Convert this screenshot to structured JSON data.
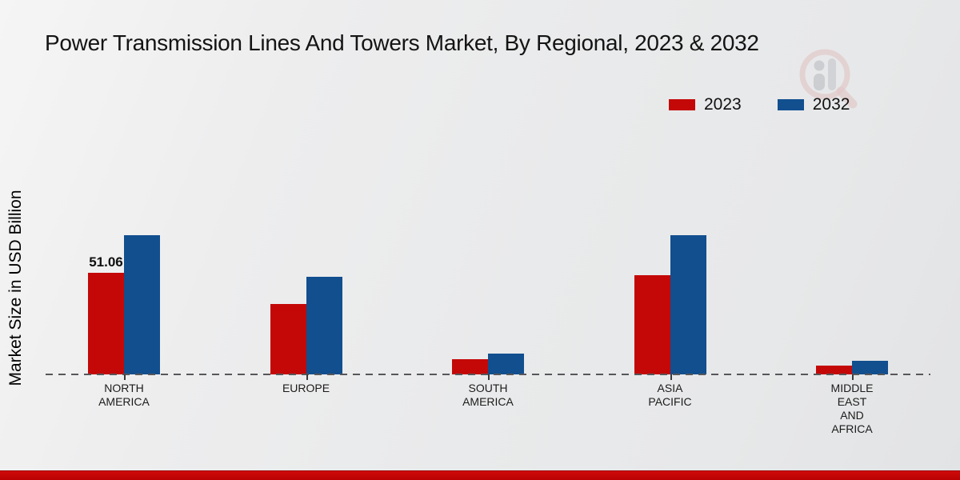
{
  "title": "Power Transmission Lines And Towers Market, By Regional, 2023 & 2032",
  "watermark_icon": "magnifier-bar-chart-logo",
  "footer": {
    "accent_color": "#c00505"
  },
  "colors": {
    "background": "#eaebec",
    "series_2023": "#c40808",
    "series_2032": "#114f8e",
    "axis_dash": "#57575a",
    "text": "#141414"
  },
  "chart_data": {
    "type": "bar",
    "title": "Power Transmission Lines And Towers Market, By Regional, 2023 & 2032",
    "xlabel": "",
    "ylabel": "Market Size in USD Billion",
    "ylim": [
      0,
      80
    ],
    "grid": false,
    "legend_position": "top-right",
    "x_axis_style": "dashed-baseline-only",
    "categories": [
      "NORTH AMERICA",
      "EUROPE",
      "SOUTH AMERICA",
      "ASIA PACIFIC",
      "MIDDLE EAST AND AFRICA"
    ],
    "category_label_lines": [
      [
        "NORTH",
        "AMERICA"
      ],
      [
        "EUROPE"
      ],
      [
        "SOUTH",
        "AMERICA"
      ],
      [
        "ASIA",
        "PACIFIC"
      ],
      [
        "MIDDLE",
        "EAST",
        "AND",
        "AFRICA"
      ]
    ],
    "series": [
      {
        "name": "2023",
        "color": "#c40808",
        "values": [
          51.06,
          35.4,
          7.6,
          50.0,
          4.3
        ]
      },
      {
        "name": "2032",
        "color": "#114f8e",
        "values": [
          70.0,
          49.0,
          10.6,
          70.0,
          7.0
        ]
      }
    ],
    "bar_value_labels": [
      {
        "series": "2023",
        "category": "NORTH AMERICA",
        "text": "51.06"
      }
    ]
  }
}
